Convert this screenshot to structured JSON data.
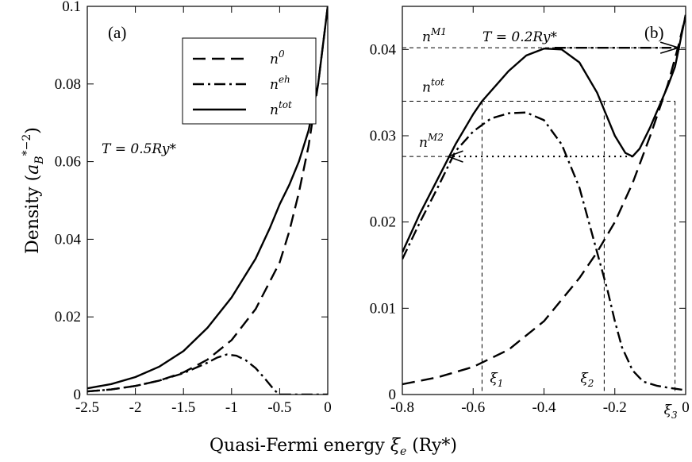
{
  "figure": {
    "ylabel": "Density (a_B^{*−2})",
    "xlabel": "Quasi-Fermi energy ξ_e (Ry*)"
  },
  "chart_data": [
    {
      "type": "line",
      "panel_label": "(a)",
      "annotation": "T = 0.5Ry*",
      "xlim": [
        -2.5,
        0.0
      ],
      "ylim": [
        0.0,
        0.1
      ],
      "xticks": [
        "-2.5",
        "-2",
        "-1.5",
        "-1",
        "-0.5",
        "0"
      ],
      "yticks": [
        "0",
        "0.02",
        "0.04",
        "0.06",
        "0.08",
        "0.1"
      ],
      "legend": {
        "position": "top-right",
        "entries": [
          "n^0",
          "n^eh",
          "n^tot"
        ]
      },
      "series": [
        {
          "name": "n^0",
          "style": "dashed",
          "x": [
            -2.5,
            -2.25,
            -2.0,
            -1.75,
            -1.5,
            -1.25,
            -1.0,
            -0.75,
            -0.5,
            -0.4,
            -0.3,
            -0.2,
            -0.1,
            0.0
          ],
          "y": [
            0.0008,
            0.0013,
            0.0022,
            0.0036,
            0.0057,
            0.009,
            0.014,
            0.022,
            0.034,
            0.042,
            0.052,
            0.064,
            0.08,
            0.1
          ]
        },
        {
          "name": "n^eh",
          "style": "dashdot",
          "x": [
            -2.5,
            -2.25,
            -2.0,
            -1.75,
            -1.5,
            -1.25,
            -1.15,
            -1.05,
            -0.95,
            -0.85,
            -0.75,
            -0.65,
            -0.55,
            -0.5,
            -0.4,
            -0.3,
            -0.1,
            0.0
          ],
          "y": [
            0.0008,
            0.0013,
            0.0022,
            0.0036,
            0.0055,
            0.0082,
            0.0095,
            0.0103,
            0.01,
            0.0088,
            0.0068,
            0.004,
            0.001,
            0.0,
            0.0,
            0.0,
            0.0,
            0.0
          ]
        },
        {
          "name": "n^tot",
          "style": "solid",
          "x": [
            -2.5,
            -2.25,
            -2.0,
            -1.75,
            -1.5,
            -1.25,
            -1.0,
            -0.75,
            -0.6,
            -0.5,
            -0.4,
            -0.3,
            -0.2,
            -0.1,
            0.0
          ],
          "y": [
            0.0016,
            0.0027,
            0.0045,
            0.0072,
            0.0112,
            0.0172,
            0.025,
            0.035,
            0.043,
            0.049,
            0.054,
            0.06,
            0.068,
            0.08,
            0.1
          ]
        }
      ]
    },
    {
      "type": "line",
      "panel_label": "(b)",
      "annotation": "T = 0.2Ry*",
      "xlim": [
        -0.8,
        0.0
      ],
      "ylim": [
        0.0,
        0.045
      ],
      "xticks": [
        "-0.8",
        "-0.6",
        "-0.4",
        "-0.2",
        "0"
      ],
      "yticks": [
        "0",
        "0.01",
        "0.02",
        "0.03",
        "0.04"
      ],
      "level_labels": [
        "n^M1",
        "n^tot",
        "n^M2"
      ],
      "levels": [
        0.0402,
        0.034,
        0.0276
      ],
      "xi_labels": [
        "ξ1",
        "ξ2",
        "ξ3"
      ],
      "xi_values": [
        -0.575,
        -0.23,
        -0.03
      ],
      "series": [
        {
          "name": "n^0",
          "style": "dashed",
          "x": [
            -0.8,
            -0.7,
            -0.6,
            -0.5,
            -0.4,
            -0.3,
            -0.25,
            -0.2,
            -0.15,
            -0.1,
            -0.05,
            -0.02,
            0.0
          ],
          "y": [
            0.0012,
            0.002,
            0.0032,
            0.0052,
            0.0085,
            0.0135,
            0.0165,
            0.02,
            0.0245,
            0.03,
            0.036,
            0.0405,
            0.044
          ]
        },
        {
          "name": "n^eh",
          "style": "dashdot",
          "x": [
            -0.8,
            -0.75,
            -0.7,
            -0.65,
            -0.6,
            -0.55,
            -0.5,
            -0.45,
            -0.4,
            -0.35,
            -0.3,
            -0.25,
            -0.22,
            -0.2,
            -0.18,
            -0.15,
            -0.12,
            -0.08,
            -0.05,
            0.0
          ],
          "y": [
            0.0157,
            0.02,
            0.024,
            0.0282,
            0.0305,
            0.032,
            0.0326,
            0.0327,
            0.0318,
            0.029,
            0.024,
            0.0165,
            0.012,
            0.0085,
            0.0055,
            0.0028,
            0.0015,
            0.001,
            0.0008,
            0.0005
          ]
        },
        {
          "name": "n^tot",
          "style": "solid",
          "x": [
            -0.8,
            -0.75,
            -0.7,
            -0.65,
            -0.6,
            -0.575,
            -0.5,
            -0.45,
            -0.4,
            -0.35,
            -0.3,
            -0.25,
            -0.2,
            -0.17,
            -0.15,
            -0.13,
            -0.1,
            -0.05,
            -0.03,
            0.0
          ],
          "y": [
            0.0165,
            0.021,
            0.025,
            0.029,
            0.0325,
            0.034,
            0.0375,
            0.0393,
            0.0401,
            0.04,
            0.0385,
            0.035,
            0.03,
            0.028,
            0.0276,
            0.0285,
            0.031,
            0.0358,
            0.038,
            0.044
          ]
        }
      ]
    }
  ]
}
